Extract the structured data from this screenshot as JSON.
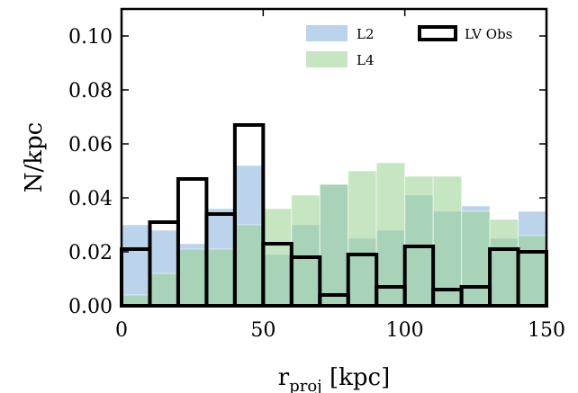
{
  "chart_data": {
    "type": "bar",
    "title": "",
    "xlabel_main": "r",
    "xlabel_sub": "proj",
    "xlabel_unit": " [kpc]",
    "ylabel": "N/kpc",
    "xlim": [
      0,
      150
    ],
    "ylim": [
      0,
      0.11
    ],
    "bin_edges": [
      0,
      10,
      20,
      30,
      40,
      50,
      60,
      70,
      80,
      90,
      100,
      110,
      120,
      130,
      140,
      150
    ],
    "x_ticks": [
      {
        "value": 0,
        "label": "0"
      },
      {
        "value": 50,
        "label": "50"
      },
      {
        "value": 100,
        "label": "100"
      },
      {
        "value": 150,
        "label": "150"
      }
    ],
    "y_ticks": [
      {
        "value": 0,
        "label": "0.00"
      },
      {
        "value": 0.02,
        "label": "0.02"
      },
      {
        "value": 0.04,
        "label": "0.04"
      },
      {
        "value": 0.06,
        "label": "0.06"
      },
      {
        "value": 0.08,
        "label": "0.08"
      },
      {
        "value": 0.1,
        "label": "0.10"
      }
    ],
    "grid": false,
    "legend_position": "top-right",
    "series": [
      {
        "name": "L2",
        "style": "filled",
        "color": "#8fb8de",
        "opacity": 0.6,
        "values": [
          0.03,
          0.028,
          0.023,
          0.036,
          0.052,
          0.019,
          0.03,
          0.045,
          0.025,
          0.028,
          0.041,
          0.035,
          0.037,
          0.025,
          0.035
        ]
      },
      {
        "name": "L4",
        "style": "filled",
        "color": "#97d28f",
        "opacity": 0.55,
        "values": [
          0.004,
          0.012,
          0.021,
          0.021,
          0.03,
          0.036,
          0.041,
          0.045,
          0.05,
          0.053,
          0.048,
          0.048,
          0.035,
          0.032,
          0.026
        ]
      },
      {
        "name": "LV Obs",
        "style": "outline",
        "color": "#000000",
        "values": [
          0.021,
          0.031,
          0.047,
          0.034,
          0.067,
          0.023,
          0.018,
          0.004,
          0.019,
          0.007,
          0.022,
          0.006,
          0.007,
          0.021,
          0.02
        ]
      }
    ]
  }
}
